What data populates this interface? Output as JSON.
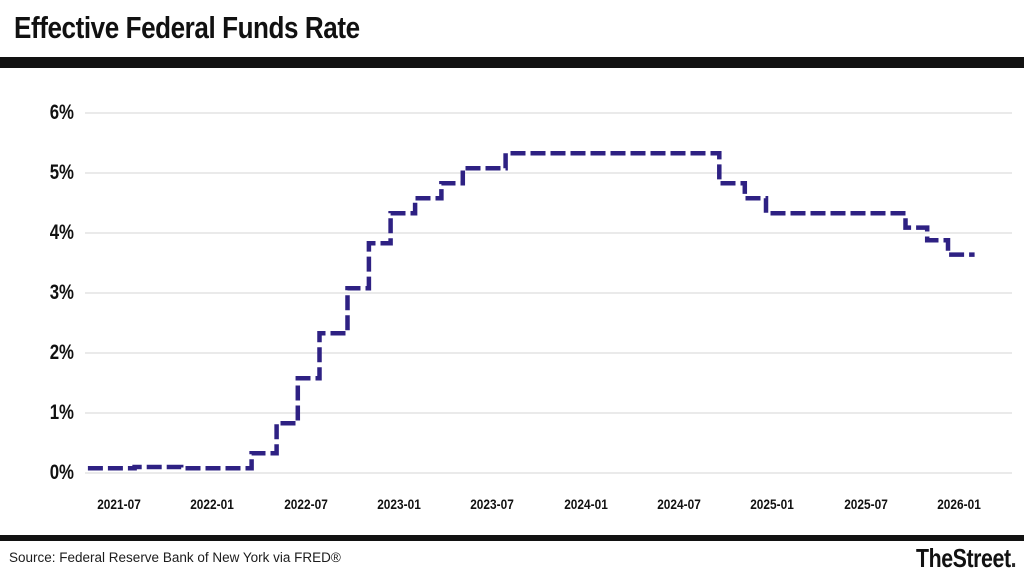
{
  "header": {
    "title": "Effective Federal Funds Rate"
  },
  "footer": {
    "source": "Source: Federal Reserve Bank of New York via FRED®",
    "brand": "TheStreet",
    "brand_dot": "."
  },
  "colors": {
    "line": "#2e2183",
    "grid": "#e4e4e4",
    "divider_bar": "#121212",
    "text": "#111111"
  },
  "chart_data": {
    "type": "line",
    "subtype": "step",
    "line_style": "dashed",
    "title": "Effective Federal Funds Rate",
    "xlabel": "",
    "ylabel": "",
    "grid": "horizontal",
    "legend": "none",
    "ylim": [
      0,
      6.3
    ],
    "xlim": [
      "2021-05-01",
      "2026-03-01"
    ],
    "yticks": [
      {
        "label": "0%",
        "value": 0
      },
      {
        "label": "1%",
        "value": 1
      },
      {
        "label": "2%",
        "value": 2
      },
      {
        "label": "3%",
        "value": 3
      },
      {
        "label": "4%",
        "value": 4
      },
      {
        "label": "5%",
        "value": 5
      },
      {
        "label": "6%",
        "value": 6
      }
    ],
    "xticks": [
      {
        "label": "2021-07",
        "date": "2021-07-01"
      },
      {
        "label": "2022-01",
        "date": "2022-01-01"
      },
      {
        "label": "2022-07",
        "date": "2022-07-01"
      },
      {
        "label": "2023-01",
        "date": "2023-01-01"
      },
      {
        "label": "2023-07",
        "date": "2023-07-01"
      },
      {
        "label": "2024-01",
        "date": "2024-01-01"
      },
      {
        "label": "2024-07",
        "date": "2024-07-01"
      },
      {
        "label": "2025-01",
        "date": "2025-01-01"
      },
      {
        "label": "2025-07",
        "date": "2025-07-01"
      },
      {
        "label": "2026-01",
        "date": "2026-01-01"
      }
    ],
    "series": [
      {
        "name": "Effective Federal Funds Rate (%)",
        "points": [
          {
            "date": "2021-05-01",
            "value": 0.08
          },
          {
            "date": "2021-08-01",
            "value": 0.1
          },
          {
            "date": "2021-11-01",
            "value": 0.08
          },
          {
            "date": "2022-03-17",
            "value": 0.33
          },
          {
            "date": "2022-05-05",
            "value": 0.83
          },
          {
            "date": "2022-06-16",
            "value": 1.58
          },
          {
            "date": "2022-07-28",
            "value": 2.33
          },
          {
            "date": "2022-09-22",
            "value": 3.08
          },
          {
            "date": "2022-11-03",
            "value": 3.83
          },
          {
            "date": "2022-12-15",
            "value": 4.33
          },
          {
            "date": "2023-02-02",
            "value": 4.58
          },
          {
            "date": "2023-03-23",
            "value": 4.83
          },
          {
            "date": "2023-05-04",
            "value": 5.08
          },
          {
            "date": "2023-07-27",
            "value": 5.33
          },
          {
            "date": "2024-09-19",
            "value": 4.83
          },
          {
            "date": "2024-11-08",
            "value": 4.58
          },
          {
            "date": "2024-12-19",
            "value": 4.33
          },
          {
            "date": "2025-09-18",
            "value": 4.09
          },
          {
            "date": "2025-10-30",
            "value": 3.88
          },
          {
            "date": "2025-12-10",
            "value": 3.64
          },
          {
            "date": "2026-02-01",
            "value": 3.64
          }
        ]
      }
    ]
  }
}
